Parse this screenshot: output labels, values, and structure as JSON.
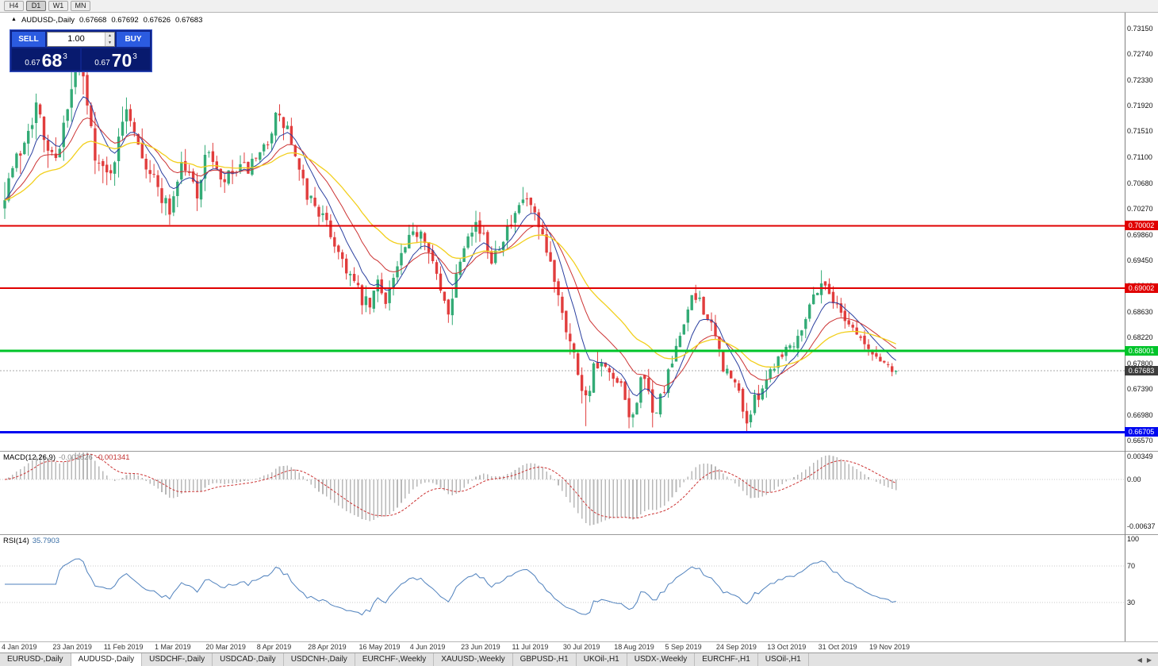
{
  "window": {
    "title": "AUDUSD-,Daily"
  },
  "toolbar": {
    "timeframes": [
      "H4",
      "D1",
      "W1",
      "MN"
    ],
    "active": "D1"
  },
  "icons": {
    "symbol_marker": "▲",
    "spinner_up": "▲",
    "spinner_down": "▼",
    "tab_scroll_left": "◀",
    "tab_scroll_right": "▶"
  },
  "chart_header": {
    "symbol": "AUDUSD-,Daily",
    "open": "0.67668",
    "high": "0.67692",
    "low": "0.67626",
    "close": "0.67683"
  },
  "trade_panel": {
    "sell_label": "SELL",
    "buy_label": "BUY",
    "volume_value": "1.00",
    "sell_price": {
      "prefix": "0.67",
      "big": "68",
      "sup": "3"
    },
    "buy_price": {
      "prefix": "0.67",
      "big": "70",
      "sup": "3"
    }
  },
  "price_axis": [
    "0.73150",
    "0.72740",
    "0.72330",
    "0.71920",
    "0.71510",
    "0.71100",
    "0.70680",
    "0.70270",
    "0.69860",
    "0.69450",
    "0.69040",
    "0.68630",
    "0.68220",
    "0.67800",
    "0.67390",
    "0.66980",
    "0.66570"
  ],
  "hlines": [
    {
      "price": 0.70002,
      "label": "0.70002",
      "color_key": "hline_red",
      "width": 2
    },
    {
      "price": 0.69002,
      "label": "0.69002",
      "color_key": "hline_red",
      "width": 2
    },
    {
      "price": 0.68001,
      "label": "0.68001",
      "color_key": "hline_green",
      "width": 3
    },
    {
      "price": 0.66705,
      "label": "0.66705",
      "color_key": "hline_blue",
      "width": 3
    }
  ],
  "current_price": {
    "value": 0.67683,
    "label": "0.67683"
  },
  "macd_panel": {
    "name": "MACD(12,26,9)",
    "main_value": "-0.001826",
    "signal_value": "-0.001341",
    "axis": [
      {
        "value": 0.00349,
        "label": "0.00349"
      },
      {
        "value": 0,
        "label": "0.00"
      },
      {
        "value": -0.00637,
        "label": "-0.00637"
      }
    ]
  },
  "rsi_panel": {
    "name": "RSI(14)",
    "value": "35.7903",
    "levels": [
      70,
      30
    ],
    "axis": [
      {
        "value": 100,
        "label": "100"
      },
      {
        "value": 70,
        "label": "70"
      },
      {
        "value": 30,
        "label": "30"
      }
    ]
  },
  "date_axis": [
    "4 Jan 2019",
    "23 Jan 2019",
    "11 Feb 2019",
    "1 Mar 2019",
    "20 Mar 2019",
    "8 Apr 2019",
    "28 Apr 2019",
    "16 May 2019",
    "4 Jun 2019",
    "23 Jun 2019",
    "11 Jul 2019",
    "30 Jul 2019",
    "18 Aug 2019",
    "5 Sep 2019",
    "24 Sep 2019",
    "13 Oct 2019",
    "31 Oct 2019",
    "19 Nov 2019"
  ],
  "tabs": {
    "items": [
      "EURUSD-,Daily",
      "AUDUSD-,Daily",
      "USDCHF-,Daily",
      "USDCAD-,Daily",
      "USDCNH-,Daily",
      "EURCHF-,Weekly",
      "XAUUSD-,Weekly",
      "GBPUSD-,H1",
      "UKOil-,H1",
      "USDX-,Weekly",
      "EURCHF-,H1",
      "USOil-,H1"
    ],
    "active_index": 1
  },
  "colors": {
    "candle_up": "#33ab76",
    "candle_down": "#e13d3d",
    "ma_fast": "#2a3f9f",
    "ma_mid": "#cc3333",
    "ma_slow": "#f2cf1c",
    "macd_hist": "#b8b8b8",
    "macd_signal": "#cc3333",
    "rsi": "#4f81bd",
    "hline_red": "#e00000",
    "hline_green": "#00c42a",
    "hline_blue": "#0008f0",
    "price_badge": "#3d3d3d"
  },
  "chart_data": {
    "type": "candlestick",
    "symbol": "AUDUSD",
    "timeframe": "Daily",
    "bar_count": 228,
    "bars_per_date_label": 13,
    "price_range": [
      0.6657,
      0.7315
    ],
    "last_ohlc": {
      "open": 0.67668,
      "high": 0.67692,
      "low": 0.67626,
      "close": 0.67683
    },
    "seed": 7,
    "anchors": [
      [
        0,
        0.706
      ],
      [
        2,
        0.709
      ],
      [
        4,
        0.712
      ],
      [
        6,
        0.7165
      ],
      [
        8,
        0.719
      ],
      [
        10,
        0.714
      ],
      [
        12,
        0.711
      ],
      [
        14,
        0.7135
      ],
      [
        16,
        0.718
      ],
      [
        18,
        0.7245
      ],
      [
        20,
        0.723
      ],
      [
        22,
        0.715
      ],
      [
        24,
        0.7095
      ],
      [
        26,
        0.708
      ],
      [
        29,
        0.713
      ],
      [
        31,
        0.7195
      ],
      [
        33,
        0.716
      ],
      [
        36,
        0.71
      ],
      [
        39,
        0.706
      ],
      [
        42,
        0.7025
      ],
      [
        45,
        0.71
      ],
      [
        47,
        0.708
      ],
      [
        49,
        0.7055
      ],
      [
        52,
        0.7125
      ],
      [
        55,
        0.7065
      ],
      [
        58,
        0.7082
      ],
      [
        62,
        0.7092
      ],
      [
        65,
        0.7105
      ],
      [
        67,
        0.714
      ],
      [
        69,
        0.7172
      ],
      [
        72,
        0.7155
      ],
      [
        75,
        0.708
      ],
      [
        77,
        0.705
      ],
      [
        79,
        0.7035
      ],
      [
        82,
        0.7
      ],
      [
        85,
        0.696
      ],
      [
        88,
        0.692
      ],
      [
        91,
        0.688
      ],
      [
        93,
        0.687
      ],
      [
        95,
        0.691
      ],
      [
        97,
        0.6885
      ],
      [
        99,
        0.6915
      ],
      [
        101,
        0.695
      ],
      [
        104,
        0.6985
      ],
      [
        106,
        0.6995
      ],
      [
        108,
        0.697
      ],
      [
        111,
        0.689
      ],
      [
        113,
        0.6865
      ],
      [
        116,
        0.695
      ],
      [
        118,
        0.6995
      ],
      [
        120,
        0.7005
      ],
      [
        124,
        0.695
      ],
      [
        127,
        0.6985
      ],
      [
        130,
        0.701
      ],
      [
        132,
        0.7042
      ],
      [
        134,
        0.703
      ],
      [
        136,
        0.699
      ],
      [
        138,
        0.6955
      ],
      [
        140,
        0.692
      ],
      [
        142,
        0.687
      ],
      [
        144,
        0.6815
      ],
      [
        146,
        0.677
      ],
      [
        148,
        0.6725
      ],
      [
        150,
        0.677
      ],
      [
        152,
        0.6775
      ],
      [
        154,
        0.6758
      ],
      [
        157,
        0.6738
      ],
      [
        159,
        0.67
      ],
      [
        160,
        0.6692
      ],
      [
        162,
        0.6762
      ],
      [
        164,
        0.6728
      ],
      [
        165,
        0.6695
      ],
      [
        168,
        0.674
      ],
      [
        171,
        0.68
      ],
      [
        173,
        0.685
      ],
      [
        175,
        0.688
      ],
      [
        177,
        0.6885
      ],
      [
        179,
        0.685
      ],
      [
        181,
        0.682
      ],
      [
        183,
        0.6775
      ],
      [
        185,
        0.6755
      ],
      [
        187,
        0.6735
      ],
      [
        189,
        0.6685
      ],
      [
        191,
        0.672
      ],
      [
        193,
        0.6745
      ],
      [
        195,
        0.677
      ],
      [
        198,
        0.68
      ],
      [
        201,
        0.6815
      ],
      [
        203,
        0.684
      ],
      [
        205,
        0.6875
      ],
      [
        207,
        0.69
      ],
      [
        208,
        0.691
      ],
      [
        210,
        0.6895
      ],
      [
        212,
        0.687
      ],
      [
        214,
        0.6855
      ],
      [
        216,
        0.6838
      ],
      [
        218,
        0.682
      ],
      [
        220,
        0.68
      ],
      [
        222,
        0.679
      ],
      [
        224,
        0.6782
      ],
      [
        226,
        0.6772
      ],
      [
        227,
        0.67683
      ]
    ],
    "volatility": [
      [
        0,
        1.5
      ],
      [
        20,
        1.5
      ],
      [
        40,
        1.1
      ],
      [
        65,
        1.0
      ],
      [
        90,
        0.95
      ],
      [
        110,
        0.95
      ],
      [
        130,
        0.9
      ],
      [
        142,
        1.25
      ],
      [
        150,
        1.0
      ],
      [
        170,
        0.85
      ],
      [
        195,
        0.8
      ],
      [
        215,
        0.7
      ],
      [
        227,
        0.55
      ]
    ],
    "wick_events": [
      {
        "i": 18,
        "high": 0.7252
      },
      {
        "i": 31,
        "high": 0.7205
      },
      {
        "i": 70,
        "high": 0.7186
      },
      {
        "i": 92,
        "low": 0.6862
      },
      {
        "i": 113,
        "low": 0.6845
      },
      {
        "i": 132,
        "high": 0.7062
      },
      {
        "i": 148,
        "low": 0.668
      },
      {
        "i": 160,
        "low": 0.6678
      },
      {
        "i": 165,
        "low": 0.6678
      },
      {
        "i": 189,
        "low": 0.6671
      },
      {
        "i": 208,
        "high": 0.6929
      }
    ],
    "moving_averages": [
      {
        "period": 8,
        "color_key": "ma_fast",
        "width": 1
      },
      {
        "period": 17,
        "color_key": "ma_mid",
        "width": 1
      },
      {
        "period": 34,
        "color_key": "ma_slow",
        "width": 1.3
      }
    ],
    "macd_params": {
      "fast": 12,
      "slow": 26,
      "signal": 9
    },
    "rsi_period": 14
  }
}
